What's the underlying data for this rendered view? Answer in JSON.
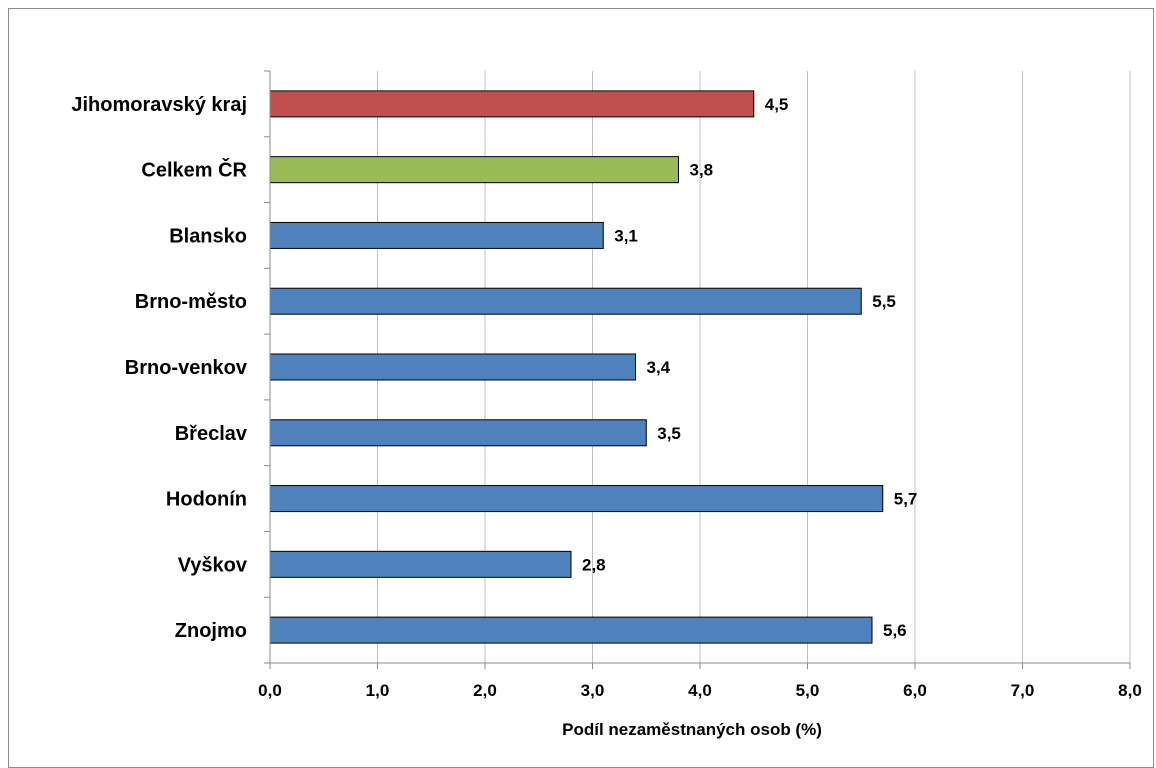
{
  "chart_data": {
    "type": "bar",
    "orientation": "horizontal",
    "categories": [
      "Jihomoravský kraj",
      "Celkem ČR",
      "Blansko",
      "Brno-město",
      "Brno-venkov",
      "Břeclav",
      "Hodonín",
      "Vyškov",
      "Znojmo"
    ],
    "values": [
      4.5,
      3.8,
      3.1,
      5.5,
      3.4,
      3.5,
      5.7,
      2.8,
      5.6
    ],
    "value_labels": [
      "4,5",
      "3,8",
      "3,1",
      "5,5",
      "3,4",
      "3,5",
      "5,7",
      "2,8",
      "5,6"
    ],
    "bar_colors": [
      "#c0504d",
      "#9bbb59",
      "#4f81bd",
      "#4f81bd",
      "#4f81bd",
      "#4f81bd",
      "#4f81bd",
      "#4f81bd",
      "#4f81bd"
    ],
    "xlabel": "Podíl nezaměstnaných osob (%)",
    "ylabel": "",
    "title": "",
    "xlim": [
      0,
      8
    ],
    "x_ticks": [
      0,
      1,
      2,
      3,
      4,
      5,
      6,
      7,
      8
    ],
    "x_tick_labels": [
      "0,0",
      "1,0",
      "2,0",
      "3,0",
      "4,0",
      "5,0",
      "6,0",
      "7,0",
      "8,0"
    ],
    "grid": "vertical major",
    "legend": "none"
  }
}
